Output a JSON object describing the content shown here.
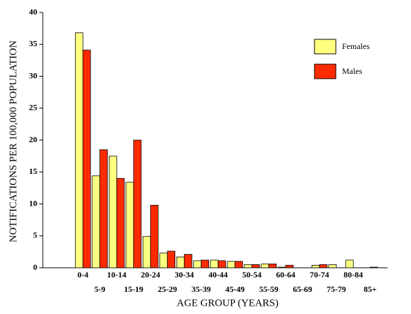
{
  "chart_data": {
    "type": "bar",
    "y_label": "NOTIFICATIONS PER 100,000 POPULATION",
    "x_label": "AGE GROUP (YEARS)",
    "categories": [
      "0-4",
      "5-9",
      "10-14",
      "15-19",
      "20-24",
      "25-29",
      "30-34",
      "35-39",
      "40-44",
      "45-49",
      "50-54",
      "55-59",
      "60-64",
      "65-69",
      "70-74",
      "75-79",
      "80-84",
      "85+"
    ],
    "series": [
      {
        "name": "Females",
        "color": "#ffff80",
        "values": [
          36.8,
          14.4,
          17.5,
          13.4,
          4.9,
          2.3,
          1.7,
          1.1,
          1.2,
          1.0,
          0.5,
          0.6,
          0.1,
          0,
          0.4,
          0.5,
          1.2,
          0
        ]
      },
      {
        "name": "Males",
        "color": "#ff2a00",
        "values": [
          34.1,
          18.5,
          14.0,
          20.0,
          9.8,
          2.6,
          2.1,
          1.2,
          1.1,
          1.0,
          0.5,
          0.6,
          0.4,
          0,
          0.5,
          0,
          0,
          0.1
        ]
      }
    ],
    "ylim": [
      0,
      40
    ],
    "yticks": [
      0,
      5,
      10,
      15,
      20,
      25,
      30,
      35,
      40
    ],
    "legend": "upper right"
  }
}
